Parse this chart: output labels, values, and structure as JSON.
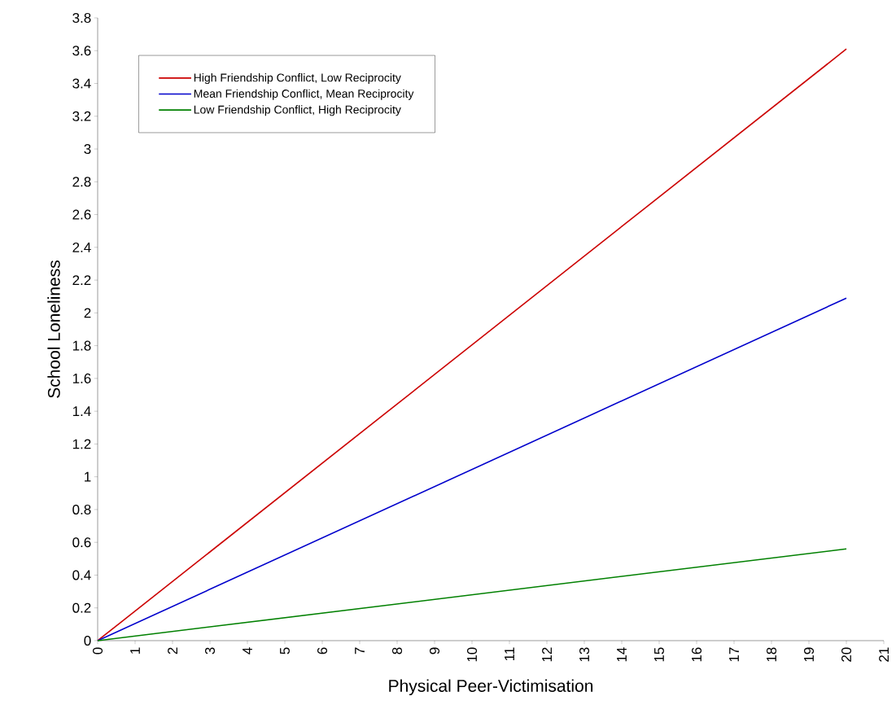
{
  "chart_data": {
    "type": "line",
    "xlabel": "Physical Peer-Victimisation",
    "ylabel": "School Loneliness",
    "x": [
      0,
      20
    ],
    "series": [
      {
        "name": "High Friendship Conflict, Low Reciprocity",
        "color": "#cc0000",
        "values": [
          0,
          3.61
        ]
      },
      {
        "name": "Mean Friendship Conflict, Mean Reciprocity",
        "color": "#0000cc",
        "values": [
          0,
          2.09
        ]
      },
      {
        "name": "Low Friendship Conflict, High Reciprocity",
        "color": "#008000",
        "values": [
          0,
          0.56
        ]
      }
    ],
    "xlim": [
      0,
      21
    ],
    "xticks": [
      0,
      1,
      2,
      3,
      4,
      5,
      6,
      7,
      8,
      9,
      10,
      11,
      12,
      13,
      14,
      15,
      16,
      17,
      18,
      19,
      20,
      21
    ],
    "ylim": [
      0,
      3.8
    ],
    "yticks": [
      0,
      0.2,
      0.4,
      0.6,
      0.8,
      1,
      1.2,
      1.4,
      1.6,
      1.8,
      2,
      2.2,
      2.4,
      2.6,
      2.8,
      3,
      3.2,
      3.4,
      3.6,
      3.8
    ],
    "grid": false,
    "legend": "top left",
    "marker": "none",
    "line_style": "solid"
  }
}
